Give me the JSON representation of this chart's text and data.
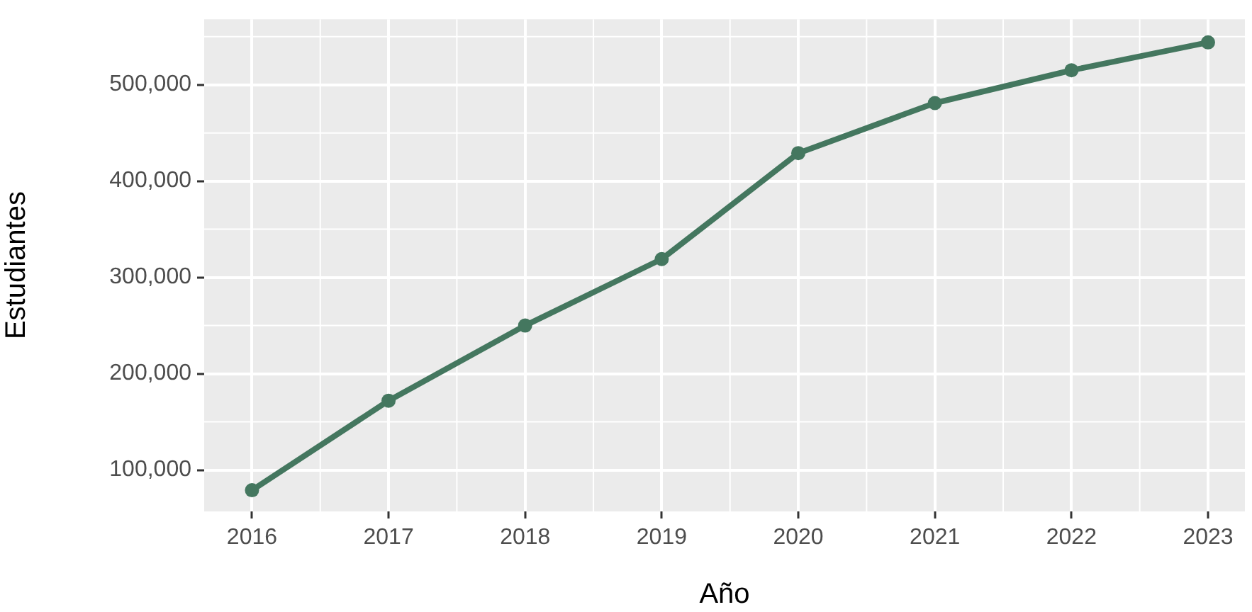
{
  "chart_data": {
    "type": "line",
    "xlabel": "Año",
    "ylabel": "Estudiantes",
    "x": [
      2016,
      2017,
      2018,
      2019,
      2020,
      2021,
      2022,
      2023
    ],
    "series": [
      {
        "color": "#44775f",
        "values": [
          79000,
          172000,
          250000,
          319000,
          429000,
          481000,
          515000,
          544000
        ]
      }
    ],
    "xlim": [
      2015.65,
      2023.27
    ],
    "xticks": [
      2016,
      2017,
      2018,
      2019,
      2020,
      2021,
      2022,
      2023
    ],
    "ylim": [
      57000,
      568000
    ],
    "yticks": [
      {
        "value": 100000,
        "label": "100,000"
      },
      {
        "value": 200000,
        "label": "200,000"
      },
      {
        "value": 300000,
        "label": "300,000"
      },
      {
        "value": 400000,
        "label": "400,000"
      },
      {
        "value": 500000,
        "label": "500,000"
      }
    ],
    "grid": true,
    "marker": "circle",
    "line_style": "solid"
  }
}
